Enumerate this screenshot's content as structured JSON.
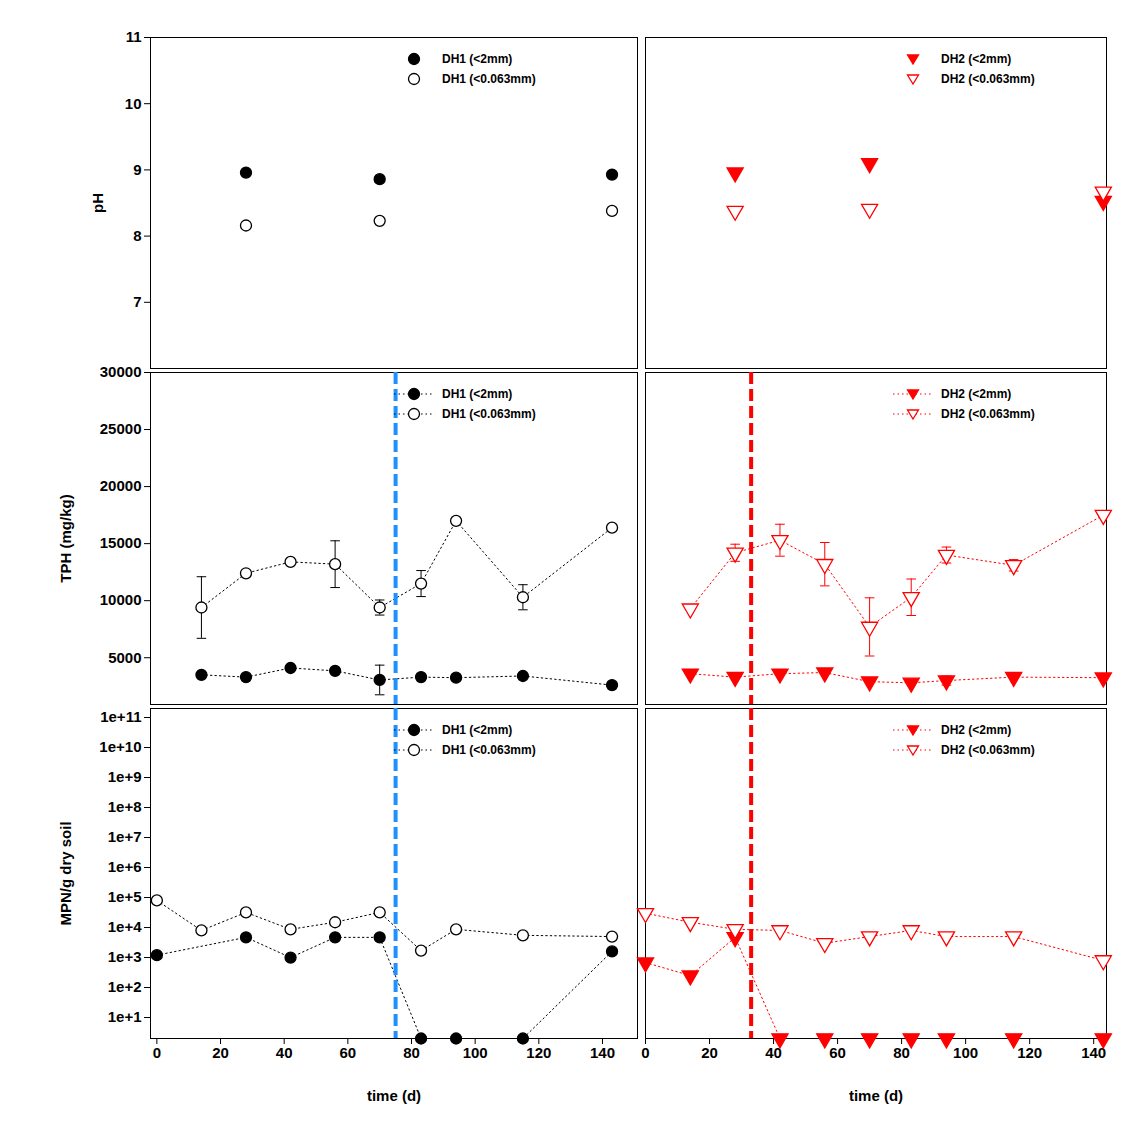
{
  "chart_data": [
    {
      "type": "scatter",
      "y_label": "pH",
      "xlim": [
        -2,
        151
      ],
      "ylim": [
        6,
        11
      ],
      "yticks": [
        7,
        8,
        9,
        10,
        11
      ],
      "tick_labels": "y",
      "legend": "upper right",
      "series": [
        {
          "name": "DH1 (<2mm)",
          "color": "#000000",
          "marker": "circle",
          "line_style": "none",
          "x": [
            28,
            70,
            143
          ],
          "values": [
            8.96,
            8.86,
            8.93
          ]
        },
        {
          "name": "DH1 (<0.063mm)",
          "color": "#000000",
          "marker": "circle-open",
          "line_style": "none",
          "x": [
            28,
            70,
            143
          ],
          "values": [
            8.16,
            8.23,
            8.38
          ]
        }
      ]
    },
    {
      "type": "scatter",
      "xlim": [
        0,
        144
      ],
      "ylim": [
        6,
        11
      ],
      "tick_labels": false,
      "legend": "upper right",
      "series": [
        {
          "name": "DH2 (<2mm)",
          "color": "#ff0000",
          "marker": "triangle-down",
          "line_style": "none",
          "x": [
            28,
            70,
            143
          ],
          "values": [
            8.96,
            9.1,
            8.53
          ]
        },
        {
          "name": "DH2 (<0.063mm)",
          "color": "#ff0000",
          "marker": "triangle-down-open",
          "line_style": "none",
          "x": [
            28,
            70,
            143
          ],
          "values": [
            8.38,
            8.41,
            8.67
          ]
        }
      ]
    },
    {
      "type": "line",
      "y_label": "TPH (mg/kg)",
      "xlim": [
        -2,
        151
      ],
      "ylim": [
        900,
        30000
      ],
      "yticks": [
        5000,
        10000,
        15000,
        20000,
        25000,
        30000
      ],
      "tick_labels": "y",
      "legend": "upper right",
      "reference_line": {
        "x": 75,
        "color": "#1e90ff"
      },
      "series": [
        {
          "name": "DH1 (<2mm)",
          "color": "#000000",
          "marker": "circle",
          "line_style": "dotted",
          "x": [
            14,
            28,
            42,
            56,
            70,
            83,
            94,
            115,
            143
          ],
          "values": [
            3500,
            3300,
            4100,
            3850,
            3050,
            3300,
            3250,
            3400,
            2600
          ],
          "errors": [
            null,
            null,
            null,
            null,
            1300,
            null,
            null,
            null,
            null
          ]
        },
        {
          "name": "DH1 (<0.063mm)",
          "color": "#000000",
          "marker": "circle-open",
          "line_style": "dotted",
          "x": [
            14,
            28,
            42,
            56,
            70,
            83,
            94,
            115,
            143
          ],
          "values": [
            9400,
            12400,
            13400,
            13200,
            9400,
            11500,
            17000,
            10300,
            16400
          ],
          "errors": [
            2700,
            null,
            null,
            2050,
            660,
            1140,
            null,
            1100,
            null
          ]
        }
      ]
    },
    {
      "type": "line",
      "xlim": [
        0,
        144
      ],
      "ylim": [
        900,
        30000
      ],
      "tick_labels": false,
      "legend": "upper right",
      "reference_line": {
        "x": 33,
        "color": "#ff0000"
      },
      "series": [
        {
          "name": "DH2 (<2mm)",
          "color": "#ff0000",
          "marker": "triangle-down",
          "line_style": "dotted",
          "x": [
            14,
            28,
            42,
            56,
            70,
            83,
            94,
            115,
            143
          ],
          "values": [
            3600,
            3300,
            3600,
            3700,
            2900,
            2800,
            3000,
            3300,
            3250
          ],
          "errors": [
            null,
            null,
            null,
            null,
            null,
            null,
            400,
            null,
            null
          ]
        },
        {
          "name": "DH2 (<0.063mm)",
          "color": "#ff0000",
          "marker": "triangle-down-open",
          "line_style": "dotted",
          "x": [
            14,
            28,
            42,
            56,
            70,
            83,
            94,
            115,
            143
          ],
          "values": [
            9300,
            14200,
            15300,
            13200,
            7700,
            10300,
            14000,
            13100,
            17500
          ],
          "errors": [
            null,
            750,
            1400,
            1900,
            2550,
            1600,
            700,
            500,
            null
          ]
        }
      ]
    },
    {
      "type": "line",
      "y_label": "MPN/g dry soil",
      "x_label": "time (d)",
      "log": "y",
      "xlim": [
        -2,
        151
      ],
      "ylim": [
        2,
        200000000000
      ],
      "xticks": [
        0,
        20,
        40,
        60,
        80,
        100,
        120,
        140
      ],
      "yticks": [
        {
          "value": 10,
          "label": "1e+1"
        },
        {
          "value": 100,
          "label": "1e+2"
        },
        {
          "value": 1000,
          "label": "1e+3"
        },
        {
          "value": 10000,
          "label": "1e+4"
        },
        {
          "value": 100000,
          "label": "1e+5"
        },
        {
          "value": 1000000,
          "label": "1e+6"
        },
        {
          "value": 10000000,
          "label": "1e+7"
        },
        {
          "value": 100000000,
          "label": "1e+8"
        },
        {
          "value": 1000000000,
          "label": "1e+9"
        },
        {
          "value": 10000000000,
          "label": "1e+10"
        },
        {
          "value": 100000000000,
          "label": "1e+11"
        }
      ],
      "legend": "upper right",
      "reference_line": {
        "x": 75,
        "color": "#1e90ff"
      },
      "series": [
        {
          "name": "DH1 (<2mm)",
          "color": "#000000",
          "marker": "circle",
          "line_style": "dotted",
          "x": [
            0,
            28,
            42,
            56,
            70,
            83,
            94,
            115,
            143
          ],
          "values": [
            1200,
            4700,
            1000,
            4700,
            4700,
            2,
            2,
            2,
            1600
          ]
        },
        {
          "name": "DH1 (<0.063mm)",
          "color": "#000000",
          "marker": "circle-open",
          "line_style": "dotted",
          "x": [
            0,
            14,
            28,
            42,
            56,
            70,
            83,
            94,
            115,
            143
          ],
          "values": [
            80000,
            8000,
            32000,
            8700,
            15000,
            32000,
            1700,
            8700,
            5500,
            5000
          ]
        }
      ]
    },
    {
      "type": "line",
      "x_label": "time (d)",
      "log": "y",
      "xlim": [
        0,
        144
      ],
      "ylim": [
        2,
        200000000000
      ],
      "xticks": [
        0,
        20,
        40,
        60,
        80,
        100,
        120,
        140
      ],
      "tick_labels": "x",
      "legend": "upper right",
      "reference_line": {
        "x": 33,
        "color": "#ff0000"
      },
      "series": [
        {
          "name": "DH2 (<2mm)",
          "color": "#ff0000",
          "marker": "triangle-down",
          "line_style": "dotted",
          "x": [
            0,
            14,
            28,
            42,
            56,
            70,
            83,
            94,
            115,
            143
          ],
          "values": [
            680,
            250,
            4700,
            2,
            2,
            2,
            2,
            2,
            2,
            2
          ]
        },
        {
          "name": "DH2 (<0.063mm)",
          "color": "#ff0000",
          "marker": "triangle-down-open",
          "line_style": "dotted",
          "x": [
            0,
            14,
            28,
            42,
            56,
            70,
            83,
            94,
            115,
            143
          ],
          "values": [
            30000,
            15000,
            8700,
            8000,
            3000,
            5000,
            8000,
            5000,
            5000,
            800
          ]
        }
      ]
    }
  ]
}
